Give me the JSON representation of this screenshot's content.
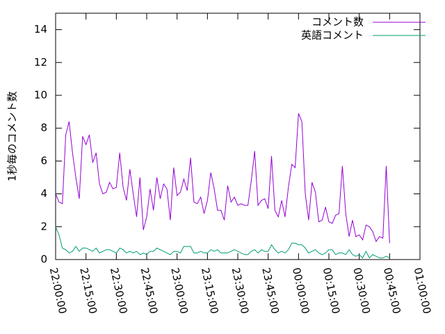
{
  "chart_data": {
    "type": "line",
    "ylabel": "1秒毎のコメント数",
    "x": [
      "22:00:00",
      "22:01:40",
      "22:03:20",
      "22:05:00",
      "22:06:40",
      "22:08:20",
      "22:10:00",
      "22:11:40",
      "22:13:20",
      "22:15:00",
      "22:16:40",
      "22:18:20",
      "22:20:00",
      "22:21:40",
      "22:23:20",
      "22:25:00",
      "22:26:40",
      "22:28:20",
      "22:30:00",
      "22:31:40",
      "22:33:20",
      "22:35:00",
      "22:36:40",
      "22:38:20",
      "22:40:00",
      "22:41:40",
      "22:43:20",
      "22:45:00",
      "22:46:40",
      "22:48:20",
      "22:50:00",
      "22:51:40",
      "22:53:20",
      "22:55:00",
      "22:56:40",
      "22:58:20",
      "23:00:00",
      "23:01:40",
      "23:03:20",
      "23:05:00",
      "23:06:40",
      "23:08:20",
      "23:10:00",
      "23:11:40",
      "23:13:20",
      "23:15:00",
      "23:16:40",
      "23:18:20",
      "23:20:00",
      "23:21:40",
      "23:23:20",
      "23:25:00",
      "23:26:40",
      "23:28:20",
      "23:30:00",
      "23:31:40",
      "23:33:20",
      "23:35:00",
      "23:36:40",
      "23:38:20",
      "23:40:00",
      "23:41:40",
      "23:43:20",
      "23:45:00",
      "23:46:40",
      "23:48:20",
      "23:50:00",
      "23:51:40",
      "23:53:20",
      "23:55:00",
      "23:56:40",
      "23:58:20",
      "00:00:00",
      "00:01:40",
      "00:03:20",
      "00:05:00",
      "00:06:40",
      "00:08:20",
      "00:10:00",
      "00:11:40",
      "00:13:20",
      "00:15:00",
      "00:16:40",
      "00:18:20",
      "00:20:00",
      "00:21:40",
      "00:23:20",
      "00:25:00",
      "00:26:40",
      "00:28:20",
      "00:30:00",
      "00:31:40",
      "00:33:20",
      "00:35:00",
      "00:36:40",
      "00:38:20",
      "00:40:00",
      "00:41:40",
      "00:43:20",
      "00:45:00"
    ],
    "series": [
      {
        "name": "コメント数",
        "color": "#9400d3",
        "values": [
          4.0,
          3.5,
          3.4,
          7.6,
          8.4,
          6.5,
          5.0,
          3.7,
          7.5,
          7.0,
          7.6,
          5.9,
          6.5,
          4.6,
          4.0,
          4.1,
          4.7,
          4.3,
          4.4,
          6.5,
          4.4,
          3.6,
          5.5,
          4.0,
          2.6,
          5.0,
          1.8,
          2.6,
          4.3,
          3.0,
          5.0,
          3.7,
          4.6,
          4.3,
          2.4,
          5.6,
          3.9,
          4.1,
          4.9,
          4.2,
          6.2,
          3.5,
          3.4,
          3.8,
          2.8,
          3.6,
          5.3,
          4.3,
          3.0,
          3.0,
          2.4,
          4.5,
          3.5,
          3.8,
          3.3,
          3.4,
          3.3,
          3.3,
          4.8,
          6.6,
          3.3,
          3.6,
          3.7,
          3.1,
          6.3,
          3.0,
          2.6,
          3.6,
          2.6,
          4.4,
          5.8,
          5.6,
          8.9,
          8.4,
          4.0,
          2.4,
          4.7,
          4.1,
          2.3,
          2.4,
          3.2,
          2.3,
          2.2,
          2.7,
          2.8,
          5.7,
          2.8,
          1.4,
          2.4,
          1.4,
          1.5,
          1.2,
          2.1,
          2.0,
          1.7,
          1.1,
          1.4,
          1.3,
          5.7,
          1.0
        ]
      },
      {
        "name": "英語コメント",
        "color": "#009e73",
        "values": [
          2.0,
          1.5,
          0.7,
          0.6,
          0.4,
          0.5,
          0.8,
          0.5,
          0.7,
          0.7,
          0.6,
          0.5,
          0.7,
          0.4,
          0.5,
          0.6,
          0.6,
          0.5,
          0.4,
          0.7,
          0.6,
          0.4,
          0.5,
          0.4,
          0.5,
          0.3,
          0.4,
          0.3,
          0.5,
          0.5,
          0.7,
          0.6,
          0.5,
          0.4,
          0.3,
          0.5,
          0.5,
          0.4,
          0.8,
          0.8,
          0.8,
          0.4,
          0.4,
          0.5,
          0.4,
          0.4,
          0.6,
          0.5,
          0.6,
          0.4,
          0.4,
          0.4,
          0.5,
          0.6,
          0.5,
          0.4,
          0.3,
          0.3,
          0.5,
          0.6,
          0.4,
          0.6,
          0.5,
          0.5,
          0.9,
          0.6,
          0.4,
          0.5,
          0.4,
          0.6,
          1.0,
          1.0,
          0.9,
          0.9,
          0.7,
          0.4,
          0.5,
          0.6,
          0.4,
          0.3,
          0.4,
          0.6,
          0.6,
          0.3,
          0.4,
          0.4,
          0.3,
          0.6,
          0.3,
          0.2,
          0.3,
          0.1,
          0.5,
          0.1,
          0.3,
          0.2,
          0.1,
          0.1,
          0.2,
          0.1
        ]
      }
    ],
    "xlim": [
      "22:00:00",
      "01:00:00"
    ],
    "xticks": [
      "22:00:00",
      "22:15:00",
      "22:30:00",
      "22:45:00",
      "23:00:00",
      "23:15:00",
      "23:30:00",
      "23:45:00",
      "00:00:00",
      "00:15:00",
      "00:30:00",
      "00:45:00",
      "01:00:00"
    ],
    "ylim": [
      0,
      15
    ],
    "yticks": [
      0,
      2,
      4,
      6,
      8,
      10,
      12,
      14
    ],
    "legend": "top-right"
  }
}
